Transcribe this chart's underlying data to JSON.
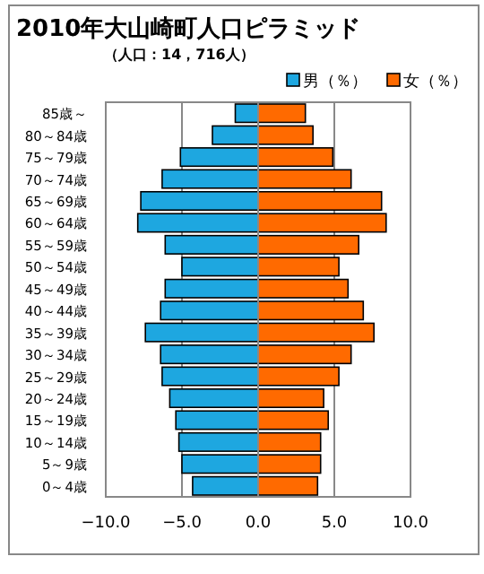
{
  "chart_data": {
    "type": "bar",
    "orientation": "horizontal",
    "title": "2010年大山崎町人口ピラミッド",
    "subtitle": "（人口：14，716人）",
    "categories": [
      "85歳～",
      "80～84歳",
      "75～79歳",
      "70～74歳",
      "65～69歳",
      "60～64歳",
      "55～59歳",
      "50～54歳",
      "45～49歳",
      "40～44歳",
      "35～39歳",
      "30～34歳",
      "25～29歳",
      "20～24歳",
      "15～19歳",
      "10～14歳",
      "5～9歳",
      "0～4歳"
    ],
    "series": [
      {
        "name": "男（％）",
        "color": "#1ea7e0",
        "values": [
          -1.5,
          -3.0,
          -5.1,
          -6.3,
          -7.7,
          -7.9,
          -6.1,
          -5.0,
          -6.1,
          -6.4,
          -7.4,
          -6.4,
          -6.3,
          -5.8,
          -5.4,
          -5.2,
          -5.0,
          -4.3
        ]
      },
      {
        "name": "女（％）",
        "color": "#ff6a00",
        "values": [
          3.1,
          3.6,
          4.9,
          6.1,
          8.1,
          8.4,
          6.6,
          5.3,
          5.9,
          6.9,
          7.6,
          6.1,
          5.3,
          4.3,
          4.6,
          4.1,
          4.1,
          3.9
        ]
      }
    ],
    "stacked": true,
    "xlim": [
      -10,
      10
    ],
    "xticks": [
      {
        "value": -10,
        "label": "−10.0"
      },
      {
        "value": -5,
        "label": "−5.0"
      },
      {
        "value": 0,
        "label": "0.0"
      },
      {
        "value": 5,
        "label": "5.0"
      },
      {
        "value": 10,
        "label": "10.0"
      }
    ],
    "grid": "x",
    "legend": "top right"
  }
}
